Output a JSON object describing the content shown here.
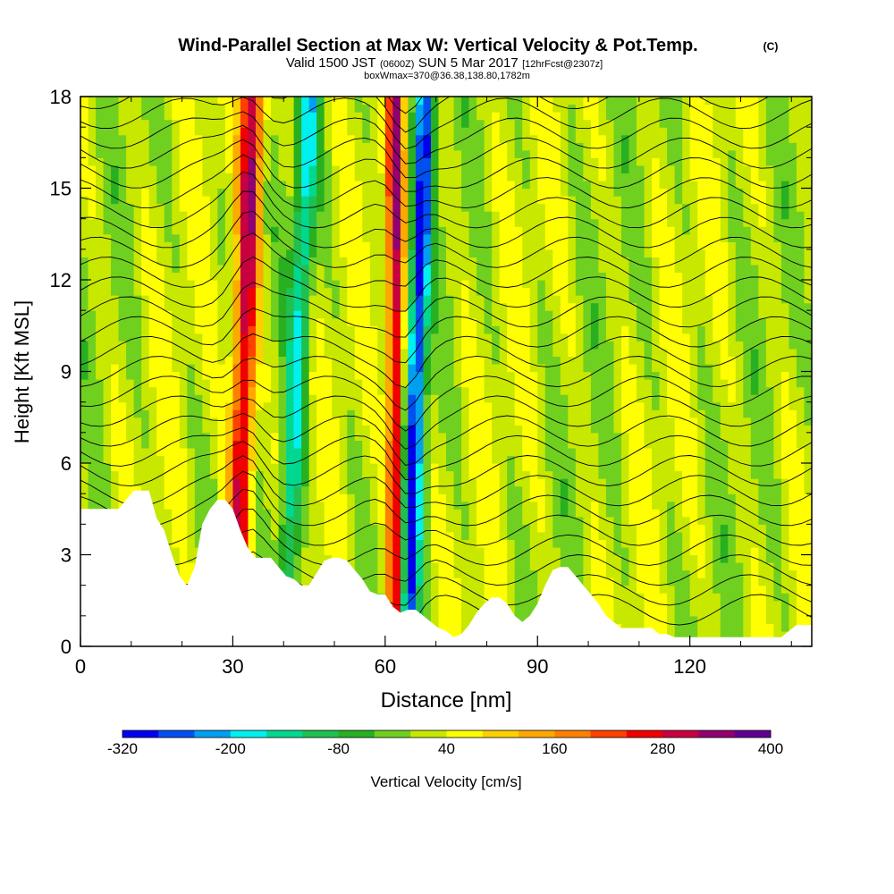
{
  "header": {
    "title": "Wind-Parallel Section at Max W: Vertical Velocity & Pot.Temp.",
    "copyright": "(C)",
    "valid_prefix": "Valid 1500 JST",
    "valid_utc": "(0600Z)",
    "valid_date": "SUN 5 Mar 2017",
    "forecast": "[12hrFcst@2307z]",
    "box_info": "boxWmax=370@36.38,138.80,1782m"
  },
  "chart_data": {
    "type": "heatmap",
    "xlabel": "Distance [nm]",
    "ylabel": "Height [Kft MSL]",
    "xlim": [
      0,
      144
    ],
    "ylim": [
      0,
      18
    ],
    "x_ticks": [
      0,
      30,
      60,
      90,
      120
    ],
    "y_ticks": [
      0,
      3,
      6,
      9,
      12,
      15,
      18
    ],
    "colorbar": {
      "label": "Vertical Velocity [cm/s]",
      "tick_labels": [
        "-320",
        "-200",
        "-80",
        "40",
        "160",
        "280",
        "400"
      ],
      "levels": [
        -320,
        -280,
        -240,
        -200,
        -160,
        -120,
        -80,
        -40,
        0,
        40,
        80,
        120,
        160,
        200,
        240,
        280,
        320,
        360,
        400
      ],
      "colors": [
        "#0000f0",
        "#0050f0",
        "#00a0f0",
        "#00f0f0",
        "#00d890",
        "#20c050",
        "#28b020",
        "#70d020",
        "#c8e800",
        "#ffff00",
        "#ffd000",
        "#ffa800",
        "#ff8000",
        "#ff4000",
        "#f00000",
        "#c80040",
        "#900070",
        "#600090"
      ]
    },
    "terrain_kft": [
      [
        0,
        4.5
      ],
      [
        1.5,
        4.5
      ],
      [
        3,
        4.5
      ],
      [
        4.5,
        4.5
      ],
      [
        6,
        4.5
      ],
      [
        7.5,
        4.5
      ],
      [
        9,
        4.8
      ],
      [
        10.5,
        5.1
      ],
      [
        12,
        5.1
      ],
      [
        13.5,
        5.1
      ],
      [
        15,
        4.2
      ],
      [
        16.5,
        3.8
      ],
      [
        18,
        3.0
      ],
      [
        19.5,
        2.3
      ],
      [
        21,
        2.0
      ],
      [
        22.5,
        2.6
      ],
      [
        24,
        4.0
      ],
      [
        25.5,
        4.5
      ],
      [
        27,
        4.8
      ],
      [
        28.5,
        4.8
      ],
      [
        30,
        4.5
      ],
      [
        31.5,
        3.8
      ],
      [
        33,
        3.2
      ],
      [
        34.5,
        2.9
      ],
      [
        36,
        2.9
      ],
      [
        37.5,
        2.9
      ],
      [
        39,
        2.6
      ],
      [
        40.5,
        2.3
      ],
      [
        42,
        2.2
      ],
      [
        43.5,
        2.0
      ],
      [
        45,
        2.0
      ],
      [
        46.5,
        2.4
      ],
      [
        48,
        2.8
      ],
      [
        49.5,
        2.9
      ],
      [
        51,
        2.9
      ],
      [
        52.5,
        2.8
      ],
      [
        54,
        2.5
      ],
      [
        55.5,
        2.2
      ],
      [
        57,
        1.8
      ],
      [
        58.5,
        1.7
      ],
      [
        60,
        1.7
      ],
      [
        61.5,
        1.3
      ],
      [
        63,
        1.1
      ],
      [
        64.5,
        1.2
      ],
      [
        66,
        1.2
      ],
      [
        67.5,
        1.0
      ],
      [
        69,
        0.8
      ],
      [
        70.5,
        0.6
      ],
      [
        72,
        0.5
      ],
      [
        73.5,
        0.3
      ],
      [
        75,
        0.4
      ],
      [
        76.5,
        0.7
      ],
      [
        78,
        1.1
      ],
      [
        79.5,
        1.4
      ],
      [
        81,
        1.6
      ],
      [
        82.5,
        1.6
      ],
      [
        84,
        1.4
      ],
      [
        85.5,
        1.0
      ],
      [
        87,
        0.8
      ],
      [
        88.5,
        1.0
      ],
      [
        90,
        1.4
      ],
      [
        91.5,
        2.0
      ],
      [
        93,
        2.5
      ],
      [
        94.5,
        2.6
      ],
      [
        96,
        2.6
      ],
      [
        97.5,
        2.3
      ],
      [
        99,
        2.0
      ],
      [
        100.5,
        1.7
      ],
      [
        102,
        1.4
      ],
      [
        103.5,
        1.0
      ],
      [
        105,
        0.8
      ],
      [
        106.5,
        0.6
      ],
      [
        108,
        0.6
      ],
      [
        109.5,
        0.6
      ],
      [
        111,
        0.6
      ],
      [
        112.5,
        0.6
      ],
      [
        114,
        0.4
      ],
      [
        115.5,
        0.4
      ],
      [
        117,
        0.3
      ],
      [
        118.5,
        0.3
      ],
      [
        120,
        0.3
      ],
      [
        121.5,
        0.3
      ],
      [
        123,
        0.3
      ],
      [
        124.5,
        0.3
      ],
      [
        126,
        0.3
      ],
      [
        127.5,
        0.3
      ],
      [
        129,
        0.3
      ],
      [
        130.5,
        0.3
      ],
      [
        132,
        0.3
      ],
      [
        133.5,
        0.3
      ],
      [
        135,
        0.3
      ],
      [
        136.5,
        0.3
      ],
      [
        138,
        0.3
      ],
      [
        139.5,
        0.5
      ],
      [
        141,
        0.7
      ],
      [
        142.5,
        0.7
      ],
      [
        144,
        0.7
      ]
    ],
    "vertical_velocity_features": [
      {
        "name": "strong updraft",
        "x_base": 31,
        "slope_nm_per_kft": 0.2,
        "width_nm": 1.6,
        "peak_cms": 300
      },
      {
        "name": "strong downdraft",
        "x_base": 65,
        "slope_nm_per_kft": 0.2,
        "width_nm": 1.3,
        "peak_cms": -300
      },
      {
        "name": "updraft",
        "x_base": 62,
        "slope_nm_per_kft": 0.0,
        "width_nm": 1.1,
        "peak_cms": 290
      },
      {
        "name": "downdraft",
        "x_base": 41,
        "slope_nm_per_kft": 0.28,
        "width_nm": 1.5,
        "peak_cms": -180
      }
    ]
  }
}
